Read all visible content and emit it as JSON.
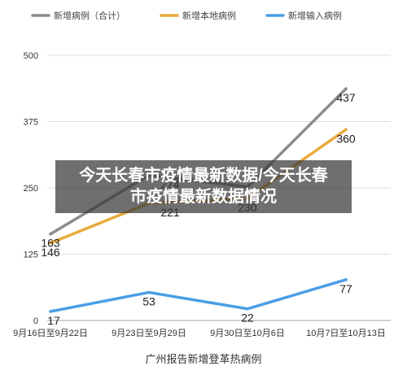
{
  "overlay": {
    "line1": "今天长春市疫情最新数据/今天长春",
    "line2": "市疫情最新数据情况"
  },
  "chart_data": {
    "type": "line",
    "title": "广州报告新增登革热病例",
    "categories": [
      "9月16日至9月22日",
      "9月23日至9月29日",
      "9月30日至10月6日",
      "10月7日至10月13日"
    ],
    "ylim": [
      0,
      500
    ],
    "yticks": [
      0,
      125,
      250,
      375,
      500
    ],
    "grid": true,
    "legend": "top",
    "series": [
      {
        "name": "新增病例（合计）",
        "color": "#8b8b8b",
        "values": [
          163,
          274,
          252,
          437
        ],
        "labels": [
          "163",
          "274",
          null,
          "437"
        ]
      },
      {
        "name": "新增本地病例",
        "color": "#e8aa3a",
        "values": [
          146,
          221,
          230,
          360
        ],
        "labels": [
          "146",
          "221",
          "230",
          "360"
        ]
      },
      {
        "name": "新增输入病例",
        "color": "#4b9ee6",
        "values": [
          17,
          53,
          22,
          77
        ],
        "labels": [
          "17",
          "53",
          "22",
          "77"
        ]
      }
    ]
  }
}
